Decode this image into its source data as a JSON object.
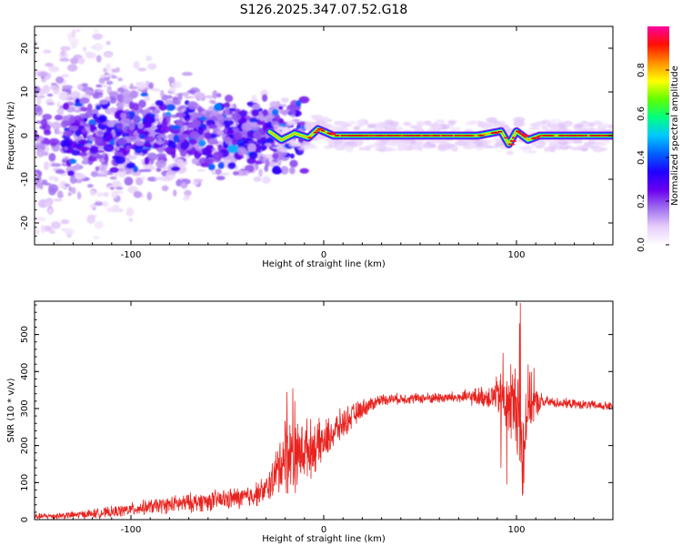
{
  "chart_data": [
    {
      "type": "heatmap",
      "title": "S126.2025.347.07.52.G18",
      "xlabel": "Height of straight line (km)",
      "ylabel": "Frequency (Hz)",
      "xlim": [
        -150,
        150
      ],
      "ylim": [
        -25,
        25
      ],
      "x_ticks": [
        -100,
        0,
        100
      ],
      "y_ticks": [
        -20,
        -10,
        0,
        10,
        20
      ],
      "colorbar": {
        "label": "Normalized spectral amplitude",
        "range": [
          0,
          1
        ],
        "ticks": [
          0.0,
          0.2,
          0.4,
          0.6,
          0.8
        ],
        "colormap": [
          "#ffffff",
          "#e6cdfa",
          "#a070f0",
          "#6a00f0",
          "#2000ff",
          "#0060ff",
          "#00c8ff",
          "#00ff80",
          "#60ff00",
          "#ffff00",
          "#ff9000",
          "#ff1000",
          "#ff00a0"
        ]
      },
      "ridge": {
        "description": "dominant signal near 0 Hz for heights above about -20 km, scattered energy spanning -25 to 25 Hz below about -30 km",
        "points": [
          [
            -150,
            0
          ],
          [
            -100,
            0.5
          ],
          [
            -60,
            1
          ],
          [
            -30,
            1.5
          ],
          [
            -22,
            -1
          ],
          [
            -15,
            0.5
          ],
          [
            -8,
            -0.5
          ],
          [
            -3,
            1.5
          ],
          [
            5,
            0
          ],
          [
            40,
            0
          ],
          [
            80,
            0
          ],
          [
            92,
            1
          ],
          [
            96,
            -2
          ],
          [
            100,
            1
          ],
          [
            106,
            -1
          ],
          [
            112,
            0
          ],
          [
            150,
            0
          ]
        ]
      }
    },
    {
      "type": "line",
      "xlabel": "Height of straight line (km)",
      "ylabel": "SNR (10 * v/v)",
      "xlim": [
        -150,
        150
      ],
      "ylim": [
        0,
        590
      ],
      "x_ticks": [
        -100,
        0,
        100
      ],
      "y_ticks": [
        0,
        100,
        200,
        300,
        400,
        500
      ],
      "series": [
        {
          "name": "SNR",
          "color": "#e8231f",
          "baseline_x": [
            -150,
            -130,
            -110,
            -90,
            -70,
            -50,
            -40,
            -30,
            -25,
            -20,
            -15,
            -10,
            -5,
            0,
            10,
            20,
            30,
            50,
            70,
            85,
            92,
            96,
            100,
            103,
            106,
            110,
            115,
            130,
            150
          ],
          "baseline_y": [
            8,
            12,
            20,
            35,
            45,
            55,
            60,
            80,
            120,
            180,
            170,
            190,
            195,
            210,
            260,
            300,
            325,
            328,
            330,
            332,
            335,
            300,
            320,
            180,
            320,
            315,
            318,
            312,
            305
          ],
          "noise_amplitude": [
            8,
            10,
            15,
            20,
            25,
            28,
            30,
            35,
            60,
            110,
            90,
            80,
            70,
            55,
            40,
            25,
            15,
            14,
            16,
            30,
            60,
            90,
            110,
            150,
            90,
            40,
            15,
            12,
            12
          ],
          "peaks": [
            [
              102,
              585
            ],
            [
              101.5,
              530
            ],
            [
              -16,
              355
            ],
            [
              -19,
              345
            ],
            [
              93,
              450
            ],
            [
              -15,
              320
            ],
            [
              97,
              420
            ],
            [
              109,
              410
            ]
          ],
          "troughs": [
            [
              103,
              65
            ],
            [
              92,
              140
            ],
            [
              95,
              95
            ]
          ]
        }
      ]
    }
  ]
}
